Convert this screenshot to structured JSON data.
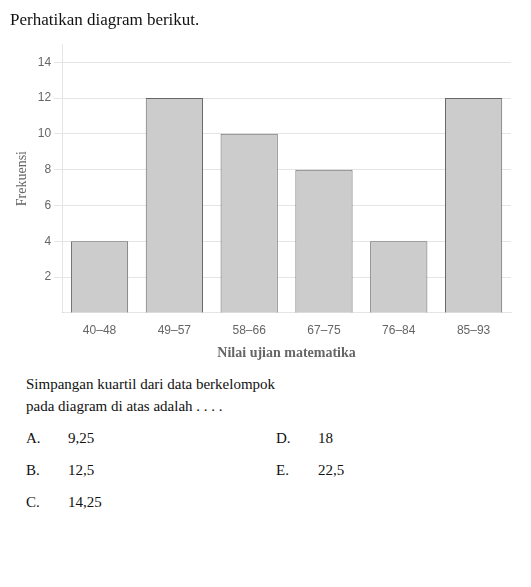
{
  "chart_data": {
    "type": "bar",
    "title": "Perhatikan diagram berikut.",
    "xlabel": "Nilai ujian matematika",
    "ylabel": "Frekuensi",
    "categories": [
      "40–48",
      "49–57",
      "58–66",
      "67–75",
      "76–84",
      "85–93"
    ],
    "values": [
      4,
      12,
      10,
      8,
      4,
      12
    ],
    "color": "#cccccc",
    "ylim": [
      0,
      15
    ],
    "yticks": [
      2,
      4,
      6,
      8,
      10,
      12,
      14
    ],
    "grid": true,
    "annotations": [
      [
        "Simpangan kuartil dari data berkelompok"
      ],
      [
        "pada diagram di atas adalah . . . ."
      ],
      [
        "A.",
        "9,25",
        "D.",
        "18"
      ],
      [
        "B.",
        "12,5",
        "E.",
        "22,5"
      ],
      [
        "C.",
        "14,25"
      ]
    ]
  }
}
